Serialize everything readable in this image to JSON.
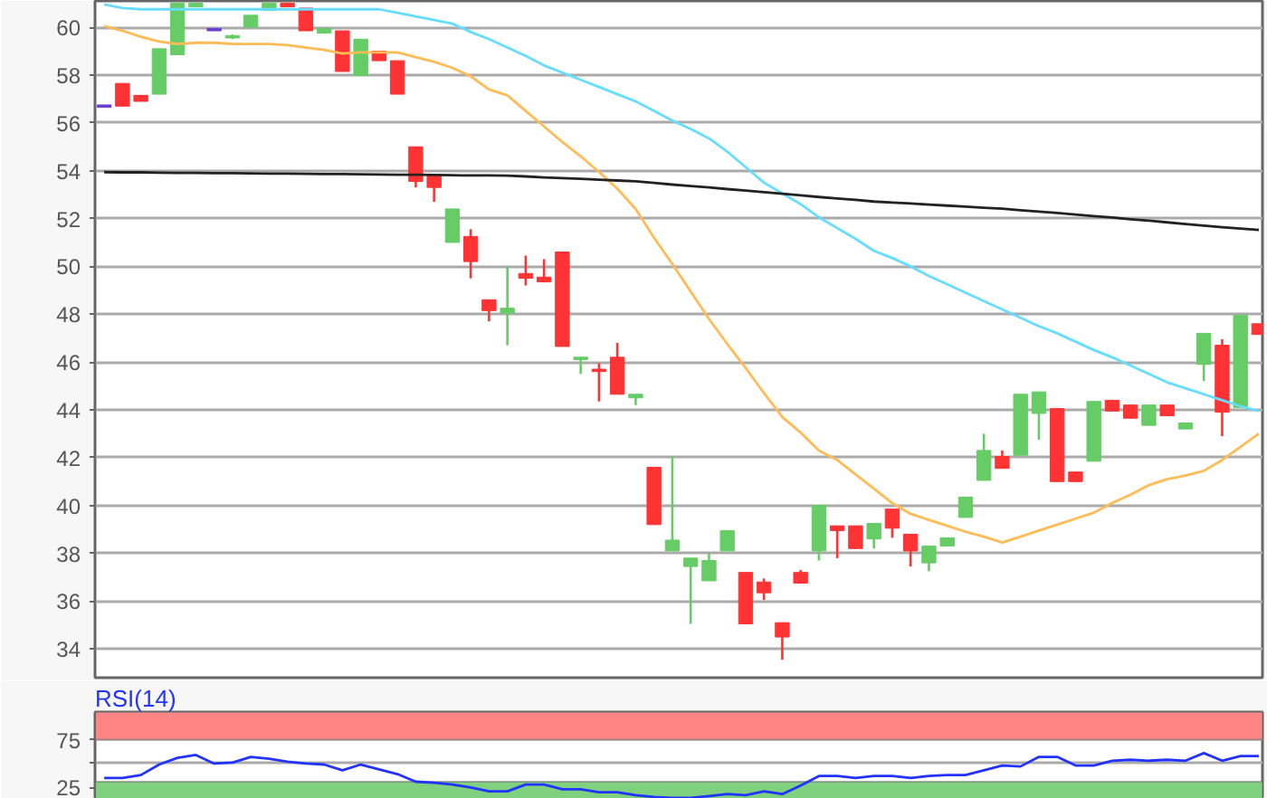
{
  "chart_data": [
    {
      "type": "candlestick",
      "categories": [
        null,
        null,
        null,
        null,
        null,
        null,
        null,
        null,
        null,
        null,
        null,
        null,
        null,
        null,
        null,
        null,
        null,
        null,
        null,
        null,
        null,
        null,
        null,
        null,
        null,
        null,
        null,
        null,
        null,
        null,
        null,
        null,
        null,
        null,
        null,
        null,
        null,
        null,
        null,
        null,
        null,
        null,
        null,
        null,
        null,
        null,
        null,
        null,
        null,
        null,
        null,
        null,
        null,
        null,
        null,
        null,
        null,
        null,
        null,
        null,
        null,
        null,
        null,
        null
      ],
      "ohlc": [
        [
          56.7,
          56.7,
          56.7,
          56.7
        ],
        [
          57.65,
          57.65,
          56.7,
          56.7
        ],
        [
          57.15,
          57.15,
          56.9,
          56.9
        ],
        [
          57.2,
          59.1,
          57.2,
          59.1
        ],
        [
          58.85,
          61.0,
          58.85,
          61.0
        ],
        [
          60.85,
          61.0,
          60.85,
          61.0
        ],
        [
          59.9,
          59.9,
          59.9,
          59.9
        ],
        [
          59.6,
          59.7,
          59.5,
          59.6
        ],
        [
          60.0,
          60.5,
          60.0,
          60.5
        ],
        [
          60.7,
          61.0,
          60.7,
          61.0
        ],
        [
          61.0,
          61.0,
          60.85,
          60.85
        ],
        [
          60.8,
          60.8,
          59.85,
          59.85
        ],
        [
          59.75,
          59.95,
          59.75,
          59.95
        ],
        [
          59.85,
          59.85,
          58.15,
          58.15
        ],
        [
          57.98,
          59.5,
          57.98,
          59.5
        ],
        [
          59.0,
          59.0,
          58.6,
          58.6
        ],
        [
          58.6,
          58.6,
          57.2,
          57.2
        ],
        [
          55.0,
          55.0,
          53.3,
          53.55
        ],
        [
          53.85,
          53.85,
          52.7,
          53.3
        ],
        [
          51.0,
          52.4,
          51.0,
          52.4
        ],
        [
          51.25,
          51.55,
          49.5,
          50.2
        ],
        [
          48.6,
          48.6,
          47.7,
          48.15
        ],
        [
          48.05,
          50.0,
          46.7,
          48.25
        ],
        [
          49.7,
          50.45,
          49.2,
          49.5
        ],
        [
          49.55,
          50.3,
          49.35,
          49.35
        ],
        [
          50.6,
          50.6,
          46.65,
          46.65
        ],
        [
          46.1,
          46.2,
          45.5,
          46.2
        ],
        [
          45.7,
          45.95,
          44.35,
          45.6
        ],
        [
          46.2,
          46.8,
          44.65,
          44.65
        ],
        [
          44.5,
          44.65,
          44.2,
          44.65
        ],
        [
          41.6,
          41.6,
          39.2,
          39.2
        ],
        [
          38.1,
          42.05,
          38.1,
          38.55
        ],
        [
          37.45,
          37.8,
          35.05,
          37.8
        ],
        [
          36.85,
          38.0,
          36.85,
          37.7
        ],
        [
          38.1,
          38.95,
          38.1,
          38.95
        ],
        [
          37.2,
          37.2,
          35.05,
          35.05
        ],
        [
          36.8,
          36.95,
          36.05,
          36.35
        ],
        [
          35.1,
          35.1,
          33.55,
          34.5
        ],
        [
          37.2,
          37.3,
          36.75,
          36.75
        ],
        [
          38.1,
          40.0,
          37.7,
          40.0
        ],
        [
          39.15,
          39.15,
          37.8,
          38.95
        ],
        [
          39.15,
          39.15,
          38.2,
          38.2
        ],
        [
          38.6,
          39.25,
          38.2,
          39.25
        ],
        [
          39.85,
          39.85,
          38.65,
          39.05
        ],
        [
          38.8,
          38.8,
          37.45,
          38.1
        ],
        [
          37.6,
          38.3,
          37.25,
          38.3
        ],
        [
          38.3,
          38.65,
          38.3,
          38.65
        ],
        [
          39.5,
          40.35,
          39.5,
          40.35
        ],
        [
          41.05,
          43.0,
          41.05,
          42.3
        ],
        [
          42.05,
          42.3,
          41.55,
          41.55
        ],
        [
          42.1,
          44.65,
          42.1,
          44.65
        ],
        [
          43.85,
          44.75,
          42.75,
          44.75
        ],
        [
          44.05,
          44.05,
          41.0,
          41.0
        ],
        [
          41.4,
          41.4,
          41.0,
          41.0
        ],
        [
          41.85,
          44.35,
          41.85,
          44.35
        ],
        [
          44.4,
          44.4,
          43.95,
          43.95
        ],
        [
          44.2,
          44.2,
          43.65,
          43.65
        ],
        [
          43.35,
          44.2,
          43.35,
          44.2
        ],
        [
          44.2,
          44.2,
          43.75,
          43.75
        ],
        [
          43.2,
          43.45,
          43.2,
          43.45
        ],
        [
          45.9,
          47.2,
          45.2,
          47.2
        ],
        [
          46.7,
          46.95,
          42.9,
          43.9
        ],
        [
          44.1,
          47.95,
          44.1,
          47.95
        ],
        [
          47.6,
          47.6,
          47.15,
          47.15
        ]
      ],
      "colors": [
        "#6a3fd0",
        "#ff3333",
        "#ff3333",
        "#66cc66",
        "#66cc66",
        "#66cc66",
        "#6a3fd0",
        "#66cc66",
        "#66cc66",
        "#66cc66",
        "#ff3333",
        "#ff3333",
        "#66cc66",
        "#ff3333",
        "#66cc66",
        "#ff3333",
        "#ff3333",
        "#ff3333",
        "#ff3333",
        "#66cc66",
        "#ff3333",
        "#ff3333",
        "#66cc66",
        "#ff3333",
        "#ff3333",
        "#ff3333",
        "#66cc66",
        "#ff3333",
        "#ff3333",
        "#66cc66",
        "#ff3333",
        "#66cc66",
        "#66cc66",
        "#66cc66",
        "#66cc66",
        "#ff3333",
        "#ff3333",
        "#ff3333",
        "#ff3333",
        "#66cc66",
        "#ff3333",
        "#ff3333",
        "#66cc66",
        "#ff3333",
        "#ff3333",
        "#66cc66",
        "#66cc66",
        "#66cc66",
        "#66cc66",
        "#ff3333",
        "#66cc66",
        "#66cc66",
        "#ff3333",
        "#ff3333",
        "#66cc66",
        "#ff3333",
        "#ff3333",
        "#66cc66",
        "#ff3333",
        "#66cc66",
        "#66cc66",
        "#ff3333",
        "#66cc66",
        "#ff3333"
      ],
      "series": [
        {
          "type": "line",
          "color": "#ffbb55",
          "values": [
            60.05,
            59.85,
            59.6,
            59.4,
            59.3,
            59.35,
            59.35,
            59.3,
            59.3,
            59.3,
            59.25,
            59.15,
            59.05,
            58.9,
            58.95,
            58.95,
            58.95,
            58.75,
            58.55,
            58.3,
            57.95,
            57.4,
            57.15,
            56.5,
            55.85,
            55.2,
            54.6,
            53.95,
            53.25,
            52.4,
            51.2,
            50.1,
            48.95,
            47.8,
            46.75,
            45.75,
            44.7,
            43.7,
            43.05,
            42.3,
            41.9,
            41.3,
            40.7,
            40.1,
            39.65,
            39.4,
            39.15,
            38.9,
            38.7,
            38.45,
            38.7,
            38.95,
            39.2,
            39.45,
            39.7,
            40.1,
            40.45,
            40.85,
            41.1,
            41.25,
            41.45,
            41.9,
            42.45,
            43.0
          ]
        },
        {
          "type": "line",
          "color": "#66ddff",
          "values": [
            60.95,
            60.8,
            60.75,
            60.75,
            60.75,
            60.75,
            60.75,
            60.75,
            60.75,
            60.75,
            60.75,
            60.75,
            60.75,
            60.75,
            60.75,
            60.75,
            60.6,
            60.45,
            60.3,
            60.15,
            59.8,
            59.5,
            59.15,
            58.8,
            58.4,
            58.1,
            57.8,
            57.5,
            57.2,
            56.9,
            56.5,
            56.1,
            55.75,
            55.35,
            54.8,
            54.15,
            53.5,
            53.05,
            52.6,
            52.05,
            51.6,
            51.15,
            50.65,
            50.35,
            50.0,
            49.6,
            49.25,
            48.9,
            48.55,
            48.2,
            47.85,
            47.5,
            47.2,
            46.85,
            46.5,
            46.2,
            45.85,
            45.5,
            45.15,
            44.9,
            44.65,
            44.4,
            44.15,
            43.95
          ]
        },
        {
          "type": "line",
          "color": "#222222",
          "values": [
            53.94,
            53.93,
            53.93,
            53.92,
            53.91,
            53.91,
            53.9,
            53.9,
            53.89,
            53.88,
            53.88,
            53.87,
            53.86,
            53.86,
            53.85,
            53.84,
            53.83,
            53.83,
            53.82,
            53.81,
            53.8,
            53.8,
            53.79,
            53.76,
            53.72,
            53.69,
            53.66,
            53.62,
            53.59,
            53.56,
            53.49,
            53.42,
            53.36,
            53.3,
            53.23,
            53.17,
            53.1,
            53.04,
            52.97,
            52.9,
            52.84,
            52.78,
            52.71,
            52.67,
            52.63,
            52.58,
            52.54,
            52.5,
            52.45,
            52.41,
            52.35,
            52.29,
            52.23,
            52.17,
            52.1,
            52.04,
            51.97,
            51.91,
            51.84,
            51.77,
            51.7,
            51.64,
            51.58,
            51.52
          ]
        }
      ],
      "ylim": [
        32.8,
        61.1
      ],
      "yticks": [
        34,
        36,
        38,
        40,
        42,
        44,
        46,
        48,
        50,
        52,
        54,
        56,
        58,
        60
      ],
      "grid": "y",
      "tick_labels": "y"
    },
    {
      "type": "line",
      "title": "RSI(14)",
      "categories": [
        null,
        null,
        null,
        null,
        null,
        null,
        null,
        null,
        null,
        null,
        null,
        null,
        null,
        null,
        null,
        null,
        null,
        null,
        null,
        null,
        null,
        null,
        null,
        null,
        null,
        null,
        null,
        null,
        null,
        null,
        null,
        null,
        null,
        null,
        null,
        null,
        null,
        null,
        null,
        null,
        null,
        null,
        null,
        null,
        null,
        null,
        null,
        null,
        null,
        null,
        null,
        null,
        null,
        null,
        null,
        null,
        null,
        null,
        null,
        null,
        null,
        null,
        null,
        null
      ],
      "series": [
        {
          "color": "#2233ff",
          "values": [
            35,
            35,
            38,
            49,
            56,
            59,
            50,
            51,
            57,
            55,
            52,
            50,
            49,
            43,
            49,
            44,
            39,
            31,
            30,
            28,
            25,
            21,
            21,
            28,
            28,
            23,
            23,
            20,
            20,
            17,
            15,
            14,
            14,
            16,
            18,
            17,
            21,
            18,
            27,
            37,
            37,
            35,
            37,
            37,
            35,
            37,
            38,
            38,
            43,
            48,
            47,
            57,
            57,
            48,
            48,
            53,
            54,
            53,
            54,
            53,
            61,
            53,
            58,
            58
          ]
        }
      ],
      "bands": [
        {
          "axis": "y",
          "from": 75,
          "to": 104,
          "color": "#ff8585"
        },
        {
          "axis": "y",
          "from": 13,
          "to": 31,
          "color": "#7fd07f"
        }
      ],
      "ylim": [
        13,
        104
      ],
      "yticks": [
        25,
        {
          "value": 50,
          "label": null
        },
        75
      ],
      "grid": "y",
      "tick_labels": "y"
    }
  ]
}
